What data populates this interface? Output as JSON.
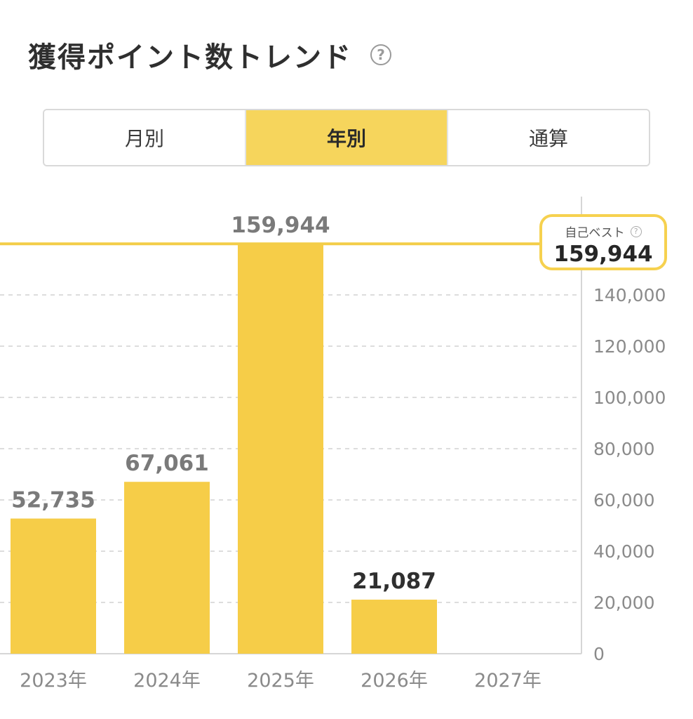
{
  "header": {
    "title": "獲得ポイント数トレンド",
    "help_icon": "question-circle-icon"
  },
  "tabs": [
    {
      "label": "月別",
      "active": false
    },
    {
      "label": "年別",
      "active": true
    },
    {
      "label": "通算",
      "active": false
    }
  ],
  "best": {
    "caption": "自己ベスト",
    "value": "159,944",
    "icon": "question-circle-icon"
  },
  "colors": {
    "bar": "#f6cd48",
    "best_line": "#f3cd48",
    "grid": "#dddddd",
    "axis": "#d6d6d6"
  },
  "chart_data": {
    "type": "bar",
    "categories": [
      "2023年",
      "2024年",
      "2025年",
      "2026年",
      "2027年"
    ],
    "values": [
      52735,
      67061,
      159944,
      21087,
      null
    ],
    "value_labels": [
      "52,735",
      "67,061",
      "159,944",
      "21,087",
      ""
    ],
    "y_ticks": [
      0,
      20000,
      40000,
      60000,
      80000,
      100000,
      120000,
      140000
    ],
    "y_tick_labels": [
      "0",
      "20,000",
      "40,000",
      "60,000",
      "80,000",
      "100,000",
      "120,000",
      "140,000"
    ],
    "ylim": [
      0,
      160000
    ],
    "reference_line": {
      "value": 159944
    },
    "grid": true,
    "y_axis_position": "right"
  }
}
